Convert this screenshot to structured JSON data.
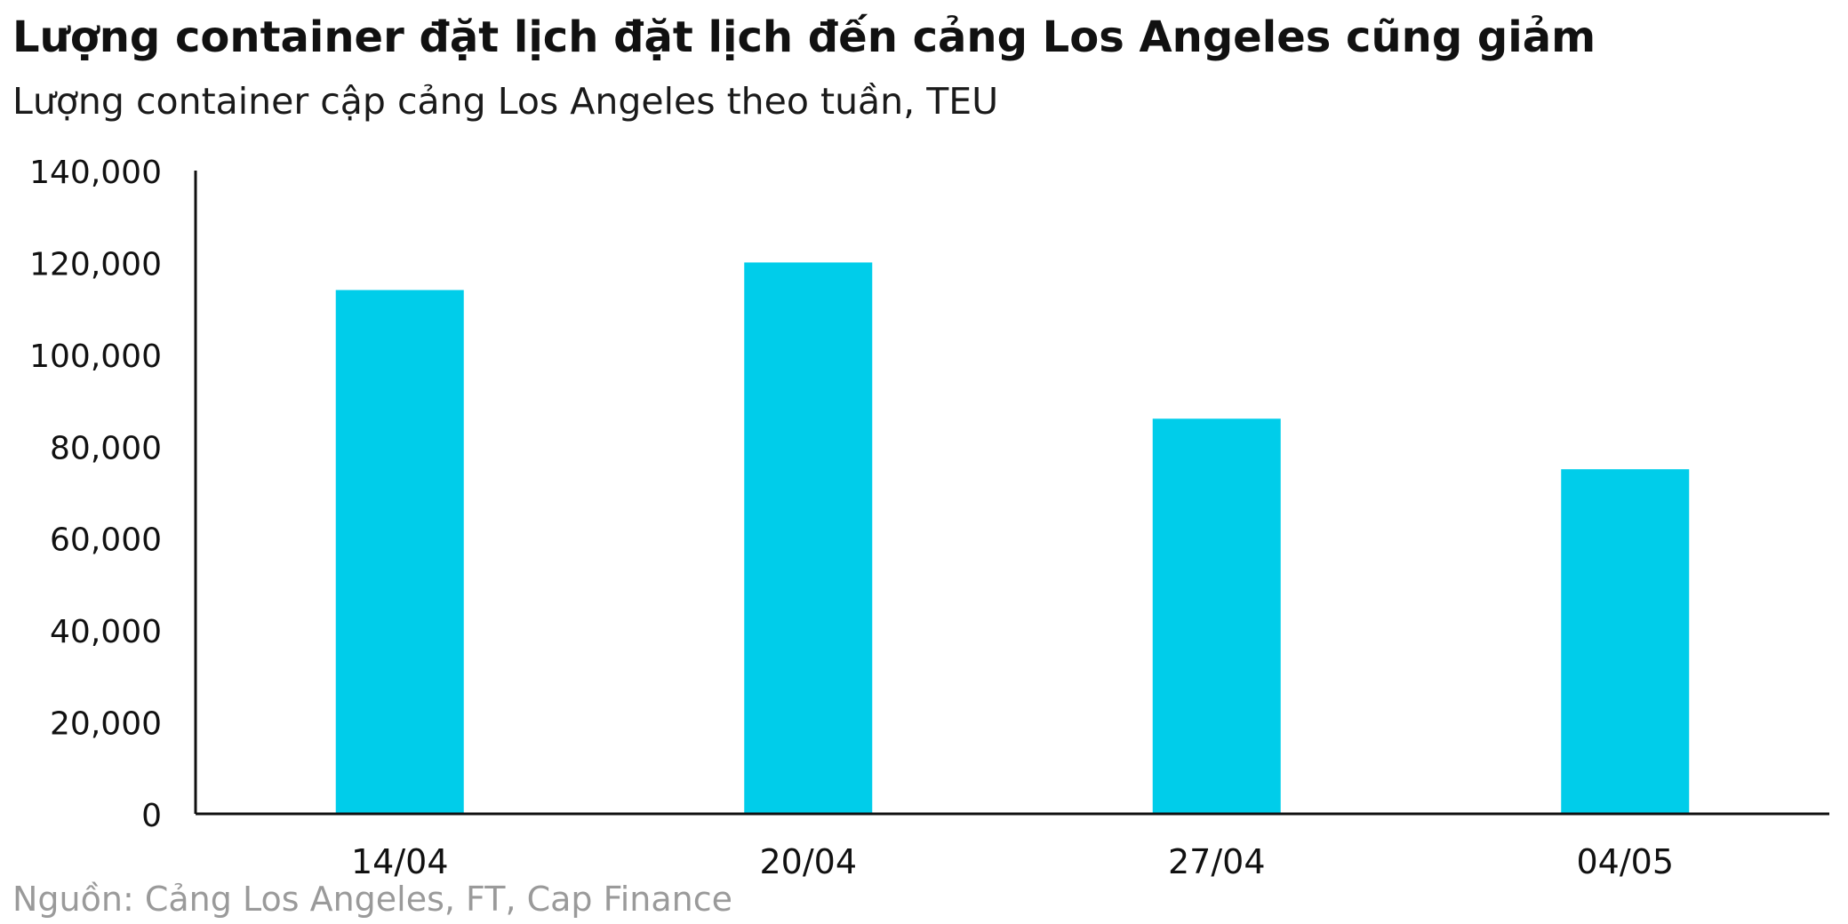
{
  "title": "Lượng container đặt lịch đặt lịch đến cảng Los Angeles cũng giảm",
  "subtitle": "Lượng container cập cảng Los Angeles theo tuần, TEU",
  "source": "Nguồn: Cảng Los Angeles, FT, Cap Finance",
  "colors": {
    "bar": "#00CDEA",
    "axis": "#111111"
  },
  "chart_data": {
    "type": "bar",
    "categories": [
      "14/04",
      "20/04",
      "27/04",
      "04/05"
    ],
    "values": [
      114000,
      120000,
      86000,
      75000
    ],
    "title": "Lượng container đặt lịch đặt lịch đến cảng Los Angeles cũng giảm",
    "subtitle": "Lượng container cập cảng Los Angeles theo tuần, TEU",
    "xlabel": "",
    "ylabel": "",
    "ylim": [
      0,
      140000
    ],
    "yticks": [
      0,
      20000,
      40000,
      60000,
      80000,
      100000,
      120000,
      140000
    ],
    "ytick_labels": [
      "0",
      "20,000",
      "40,000",
      "60,000",
      "80,000",
      "100,000",
      "120,000",
      "140,000"
    ],
    "grid": false,
    "legend": "none"
  }
}
